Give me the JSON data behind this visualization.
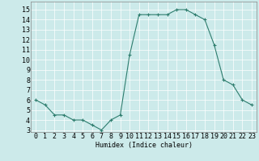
{
  "x": [
    0,
    1,
    2,
    3,
    4,
    5,
    6,
    7,
    8,
    9,
    10,
    11,
    12,
    13,
    14,
    15,
    16,
    17,
    18,
    19,
    20,
    21,
    22,
    23
  ],
  "y": [
    6,
    5.5,
    4.5,
    4.5,
    4,
    4,
    3.5,
    3,
    4,
    4.5,
    10.5,
    14.5,
    14.5,
    14.5,
    14.5,
    15,
    15,
    14.5,
    14,
    11.5,
    8,
    7.5,
    6,
    5.5
  ],
  "line_color": "#2e7d6e",
  "marker": "+",
  "marker_size": 3,
  "bg_color": "#cceaea",
  "grid_color": "#ffffff",
  "xlabel": "Humidex (Indice chaleur)",
  "xlim": [
    -0.5,
    23.5
  ],
  "ylim": [
    2.8,
    15.8
  ],
  "yticks": [
    3,
    4,
    5,
    6,
    7,
    8,
    9,
    10,
    11,
    12,
    13,
    14,
    15
  ],
  "xticks": [
    0,
    1,
    2,
    3,
    4,
    5,
    6,
    7,
    8,
    9,
    10,
    11,
    12,
    13,
    14,
    15,
    16,
    17,
    18,
    19,
    20,
    21,
    22,
    23
  ],
  "label_fontsize": 6,
  "tick_fontsize": 6
}
